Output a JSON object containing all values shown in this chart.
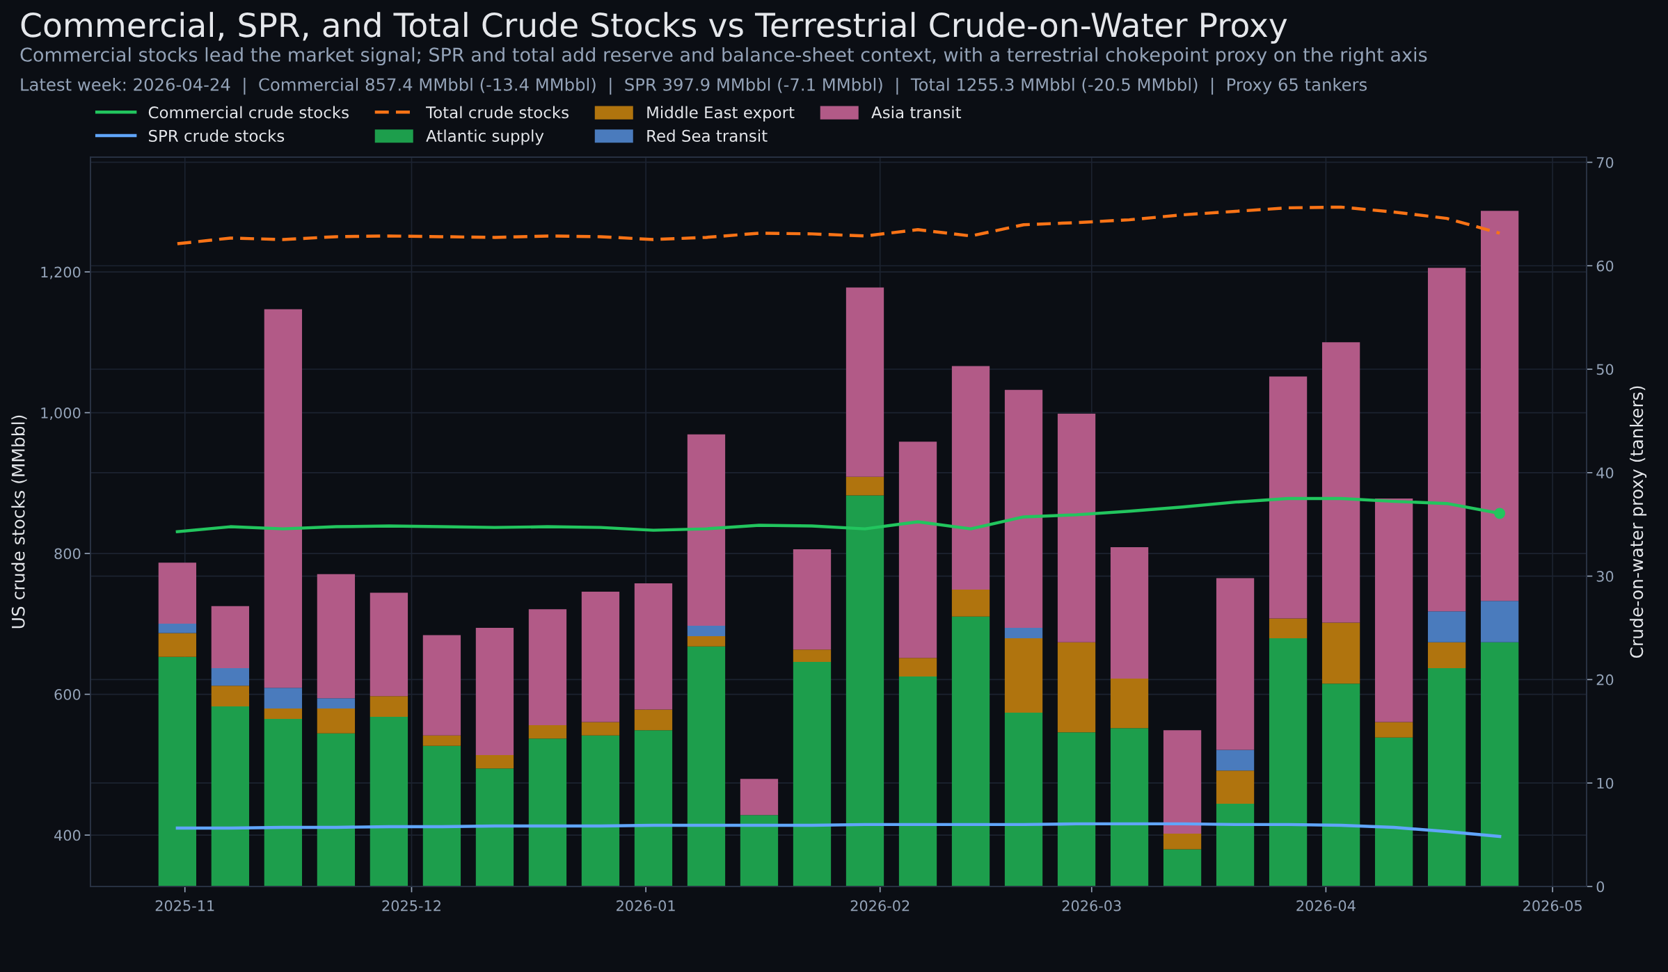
{
  "chart_data": {
    "type": "bar",
    "title": "Commercial, SPR, and Total Crude Stocks vs Terrestrial Crude-on-Water Proxy",
    "subtitle": "Commercial stocks lead the market signal; SPR and total add reserve and balance-sheet context, with a terrestrial chokepoint proxy on the right axis",
    "annotations": [
      "Latest week: 2026-04-24  |  Commercial 857.4 MMbbl (-13.4 MMbbl)  |  SPR 397.9 MMbbl (-7.1 MMbbl)  |  Total 1255.3 MMbbl (-20.5 MMbbl)  |  Proxy 65 tankers"
    ],
    "ylabel": "US crude stocks (MMbbl)",
    "y2label": "Crude-on-water proxy (tankers)",
    "x": [
      "2025-10-31",
      "2025-11-07",
      "2025-11-14",
      "2025-11-21",
      "2025-11-28",
      "2025-12-05",
      "2025-12-12",
      "2025-12-19",
      "2025-12-26",
      "2026-01-02",
      "2026-01-09",
      "2026-01-16",
      "2026-01-23",
      "2026-01-30",
      "2026-02-06",
      "2026-02-13",
      "2026-02-20",
      "2026-02-27",
      "2026-03-06",
      "2026-03-13",
      "2026-03-20",
      "2026-03-27",
      "2026-04-03",
      "2026-04-10",
      "2026-04-17",
      "2026-04-24"
    ],
    "xlim": [
      "2025-10-19T12:00",
      "2026-05-05T12:00"
    ],
    "xticks": [
      {
        "value": "2025-11-01",
        "label": "2025-11"
      },
      {
        "value": "2025-12-01",
        "label": "2025-12"
      },
      {
        "value": "2026-01-01",
        "label": "2026-01"
      },
      {
        "value": "2026-02-01",
        "label": "2026-02"
      },
      {
        "value": "2026-03-01",
        "label": "2026-03"
      },
      {
        "value": "2026-04-01",
        "label": "2026-04"
      },
      {
        "value": "2026-05-01",
        "label": "2026-05"
      }
    ],
    "ylim": [
      327,
      1363
    ],
    "yticks": [
      400,
      600,
      800,
      {
        "value": 1000,
        "label": "1,000"
      },
      {
        "value": 1200,
        "label": "1,200"
      }
    ],
    "y2lim": [
      0,
      70.5
    ],
    "y2ticks": [
      0,
      10,
      20,
      30,
      40,
      50,
      60,
      70
    ],
    "stacked": true,
    "grid": true,
    "legend": "top left",
    "series": [
      {
        "name": "Commercial crude stocks",
        "type": "line",
        "color": "#22c55e",
        "values": [
          831,
          838,
          835,
          838,
          839,
          838,
          837,
          838,
          837,
          833,
          835,
          840,
          839,
          835,
          845,
          835,
          852,
          855,
          860,
          866,
          873,
          878,
          878,
          874,
          871,
          857
        ]
      },
      {
        "name": "SPR crude stocks",
        "type": "line",
        "color": "#60a5fa",
        "values": [
          410,
          410,
          411,
          411,
          412,
          412,
          413,
          413,
          413,
          414,
          414,
          414,
          414,
          415,
          415,
          415,
          415,
          416,
          416,
          416,
          415,
          415,
          414,
          411,
          405,
          398
        ]
      },
      {
        "name": "Total crude stocks",
        "type": "line",
        "color": "#f97316",
        "line_style": "dashed",
        "values": [
          1240,
          1248,
          1246,
          1250,
          1251,
          1250,
          1249,
          1251,
          1250,
          1246,
          1249,
          1255,
          1254,
          1251,
          1260,
          1251,
          1267,
          1270,
          1274,
          1281,
          1286,
          1291,
          1292,
          1285,
          1276,
          1255
        ]
      },
      {
        "name": "Atlantic supply",
        "axis": "y2",
        "color": "#1d9e4c",
        "values": [
          22.2,
          17.4,
          16.2,
          14.8,
          16.4,
          13.6,
          11.4,
          14.3,
          14.6,
          15.1,
          23.2,
          6.9,
          21.7,
          37.8,
          20.3,
          26.1,
          16.8,
          14.9,
          15.3,
          3.6,
          8.0,
          24.0,
          19.6,
          14.4,
          21.1,
          23.6
        ]
      },
      {
        "name": "Middle East export",
        "axis": "y2",
        "color": "#b0740e",
        "values": [
          2.3,
          2.0,
          1.0,
          2.4,
          2.0,
          1.0,
          1.3,
          1.3,
          1.3,
          2.0,
          1.0,
          null,
          1.2,
          1.8,
          1.8,
          2.6,
          7.2,
          8.7,
          4.8,
          1.5,
          3.2,
          1.9,
          5.9,
          1.5,
          2.5,
          null
        ]
      },
      {
        "name": "Red Sea transit",
        "axis": "y2",
        "color": "#4a7bbd",
        "values": [
          0.9,
          1.7,
          2.0,
          1.0,
          null,
          null,
          null,
          null,
          null,
          null,
          1.0,
          null,
          null,
          null,
          null,
          null,
          1.0,
          null,
          null,
          null,
          2.0,
          null,
          null,
          null,
          3.0,
          4.0
        ]
      },
      {
        "name": "Asia transit",
        "axis": "y2",
        "color": "#b25a87",
        "values": [
          5.9,
          6.0,
          36.6,
          12.0,
          10.0,
          9.7,
          12.3,
          11.2,
          12.6,
          12.2,
          18.5,
          3.5,
          9.7,
          18.3,
          20.9,
          21.6,
          23.0,
          22.1,
          12.7,
          10.0,
          16.6,
          23.4,
          27.1,
          21.6,
          33.2,
          37.7
        ]
      },
      {
        "type": "scatter",
        "marker": "circle",
        "color": "#22c55e",
        "x": [
          "2026-04-24"
        ],
        "values": [
          857
        ]
      }
    ]
  }
}
